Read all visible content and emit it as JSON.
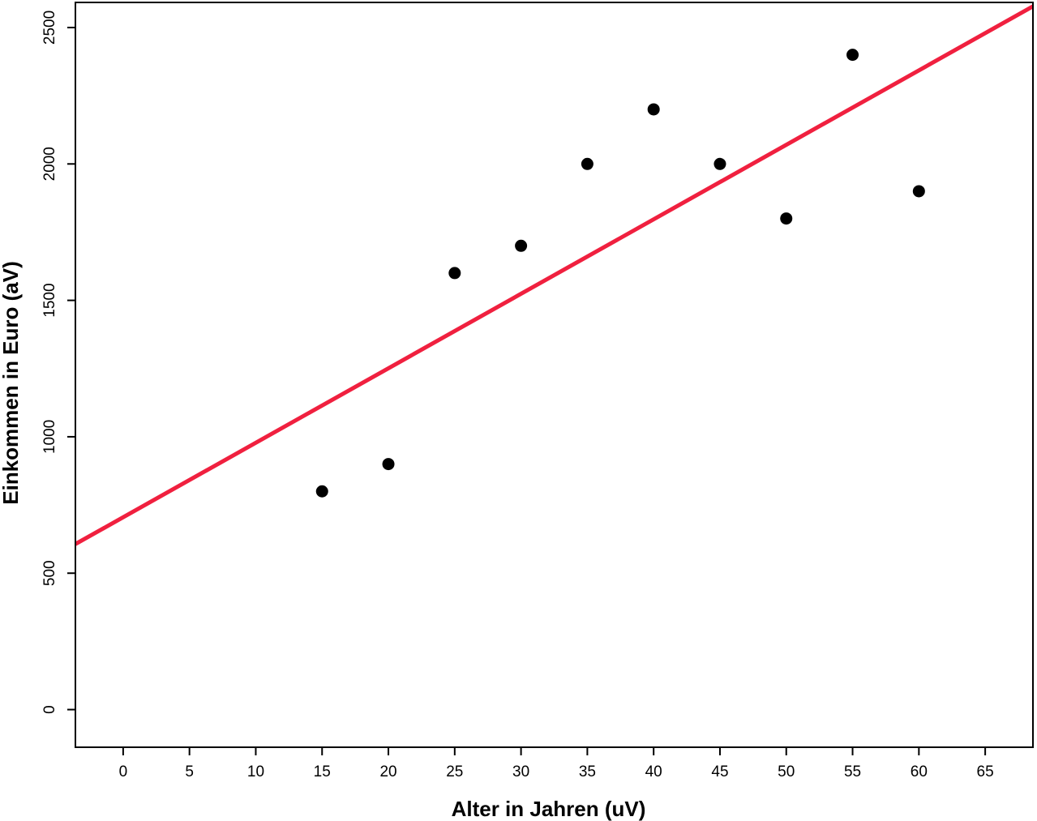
{
  "chart_data": {
    "type": "scatter",
    "title": "",
    "xlabel": "Alter in Jahren (uV)",
    "ylabel": "Einkommen in Euro (aV)",
    "xlim": [
      -3.6,
      68.6
    ],
    "ylim": [
      -138,
      2592
    ],
    "x_ticks": [
      0,
      5,
      10,
      15,
      20,
      25,
      30,
      35,
      40,
      45,
      50,
      55,
      60,
      65
    ],
    "y_ticks": [
      0,
      500,
      1000,
      1500,
      2000,
      2500
    ],
    "grid": false,
    "points": [
      {
        "x": 15,
        "y": 800
      },
      {
        "x": 20,
        "y": 900
      },
      {
        "x": 25,
        "y": 1600
      },
      {
        "x": 30,
        "y": 1700
      },
      {
        "x": 35,
        "y": 2000
      },
      {
        "x": 40,
        "y": 2200
      },
      {
        "x": 45,
        "y": 2000
      },
      {
        "x": 50,
        "y": 1800
      },
      {
        "x": 55,
        "y": 2400
      },
      {
        "x": 60,
        "y": 1900
      }
    ],
    "regression_line": {
      "intercept": 705,
      "slope": 27.3
    },
    "colors": {
      "points": "#000000",
      "regression_line": "#f0203f",
      "axis": "#000000"
    }
  }
}
